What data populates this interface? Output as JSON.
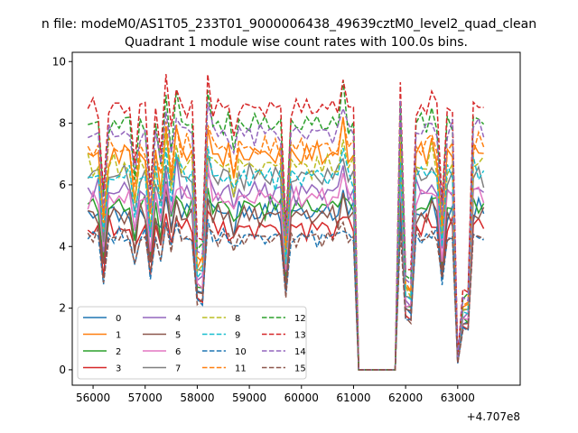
{
  "chart_data": {
    "type": "line",
    "suptitle": "n file: modeM0/AS1T05_233T01_9000006438_49639cztM0_level2_quad_clean",
    "title": "Quadrant 1 module wise count rates with 100.0s bins.",
    "offset_label": "+4.707e8",
    "xlim": [
      55600,
      64200
    ],
    "ylim": [
      -0.5,
      10.3
    ],
    "xticks": [
      56000,
      57000,
      58000,
      59000,
      60000,
      61000,
      62000,
      63000
    ],
    "xtick_labels": [
      "56000",
      "57000",
      "58000",
      "59000",
      "60000",
      "61000",
      "62000",
      "63000"
    ],
    "yticks": [
      0,
      2,
      4,
      6,
      8,
      10
    ],
    "ytick_labels": [
      "0",
      "2",
      "4",
      "6",
      "8",
      "10"
    ],
    "legend_placement": "lower-left",
    "legend_columns": 4,
    "series": [
      {
        "name": "0",
        "color": "#1f77b4",
        "dash": "solid",
        "base": 5.1,
        "amp": 0.45
      },
      {
        "name": "1",
        "color": "#ff7f0e",
        "dash": "solid",
        "base": 7.0,
        "amp": 0.5
      },
      {
        "name": "2",
        "color": "#2ca02c",
        "dash": "solid",
        "base": 5.3,
        "amp": 0.45
      },
      {
        "name": "3",
        "color": "#d62728",
        "dash": "solid",
        "base": 4.6,
        "amp": 0.45
      },
      {
        "name": "4",
        "color": "#9467bd",
        "dash": "solid",
        "base": 5.8,
        "amp": 0.5
      },
      {
        "name": "5",
        "color": "#8c564b",
        "dash": "solid",
        "base": 5.0,
        "amp": 0.45
      },
      {
        "name": "6",
        "color": "#e377c2",
        "dash": "solid",
        "base": 5.6,
        "amp": 0.45
      },
      {
        "name": "7",
        "color": "#7f7f7f",
        "dash": "solid",
        "base": 6.3,
        "amp": 0.5
      },
      {
        "name": "8",
        "color": "#bcbd22",
        "dash": "dashed",
        "base": 6.6,
        "amp": 0.5
      },
      {
        "name": "9",
        "color": "#17becf",
        "dash": "dashed",
        "base": 6.3,
        "amp": 0.5
      },
      {
        "name": "10",
        "color": "#1f77b4",
        "dash": "dashed",
        "base": 4.3,
        "amp": 0.35
      },
      {
        "name": "11",
        "color": "#ff7f0e",
        "dash": "dashed",
        "base": 7.2,
        "amp": 0.5
      },
      {
        "name": "12",
        "color": "#2ca02c",
        "dash": "dashed",
        "base": 8.0,
        "amp": 0.45
      },
      {
        "name": "13",
        "color": "#d62728",
        "dash": "dashed",
        "base": 8.5,
        "amp": 0.4
      },
      {
        "name": "14",
        "color": "#9467bd",
        "dash": "dashed",
        "base": 7.7,
        "amp": 0.45
      },
      {
        "name": "15",
        "color": "#8c564b",
        "dash": "dashed",
        "base": 4.3,
        "amp": 0.35
      }
    ]
  }
}
